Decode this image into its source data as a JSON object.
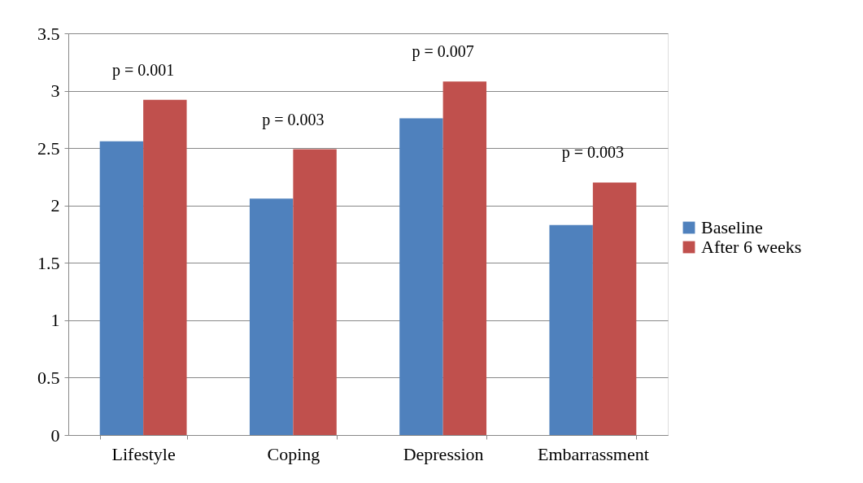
{
  "chart_data": {
    "type": "bar",
    "categories": [
      "Lifestyle",
      "Coping",
      "Depression",
      "Embarrassment"
    ],
    "series": [
      {
        "name": "Baseline",
        "color": "#4f81bd",
        "values": [
          2.56,
          2.06,
          2.76,
          1.83
        ]
      },
      {
        "name": "After 6 weeks",
        "color": "#c0504d",
        "values": [
          2.92,
          2.49,
          3.08,
          2.2
        ]
      }
    ],
    "ylim": [
      0,
      3.5
    ],
    "yticks": [
      0,
      0.5,
      1,
      1.5,
      2,
      2.5,
      3,
      3.5
    ],
    "grid": "y",
    "legend": "right",
    "annotations": [
      "p = 0.001",
      "p = 0.003",
      "p = 0.007",
      "p = 0.003"
    ]
  }
}
